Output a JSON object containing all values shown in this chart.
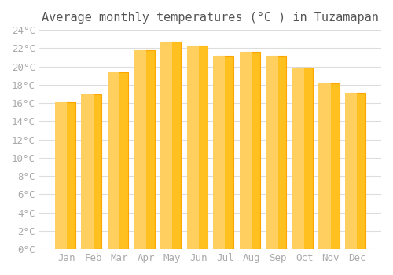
{
  "title": "Average monthly temperatures (°C ) in Tuzamapan",
  "months": [
    "Jan",
    "Feb",
    "Mar",
    "Apr",
    "May",
    "Jun",
    "Jul",
    "Aug",
    "Sep",
    "Oct",
    "Nov",
    "Dec"
  ],
  "values": [
    16.1,
    17.0,
    19.4,
    21.8,
    22.7,
    22.3,
    21.2,
    21.6,
    21.2,
    19.9,
    18.2,
    17.1
  ],
  "bar_color_face": "#FFC020",
  "bar_color_edge": "#FFA500",
  "ylim": [
    0,
    24
  ],
  "ytick_step": 2,
  "background_color": "#ffffff",
  "grid_color": "#dddddd",
  "title_fontsize": 11,
  "tick_fontsize": 9,
  "tick_label_color": "#aaaaaa",
  "title_color": "#555555"
}
